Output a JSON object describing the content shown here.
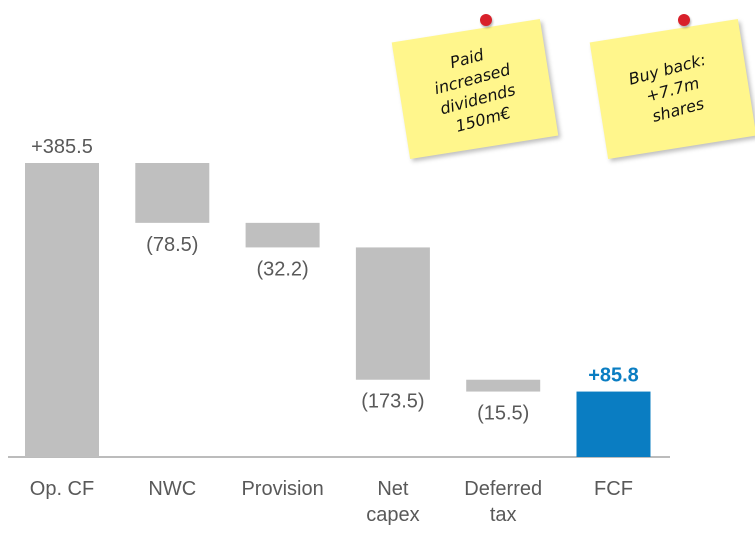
{
  "chart_data": {
    "type": "waterfall",
    "categories": [
      "Op. CF",
      "NWC",
      "Provision",
      "Net\ncapex",
      "Deferred\ntax",
      "FCF"
    ],
    "values": [
      385.5,
      -78.5,
      -32.2,
      -173.5,
      -15.5,
      85.8
    ],
    "value_labels": [
      "+385.5",
      "(78.5)",
      "(32.2)",
      "(173.5)",
      "(15.5)",
      "+85.8"
    ],
    "colors": [
      "#bfbfbf",
      "#bfbfbf",
      "#bfbfbf",
      "#bfbfbf",
      "#bfbfbf",
      "#0a7dc2"
    ],
    "annotations": [
      "Paid\nincreased\ndividends\n150m€",
      "Buy back:\n+7.7m\nshares"
    ]
  }
}
